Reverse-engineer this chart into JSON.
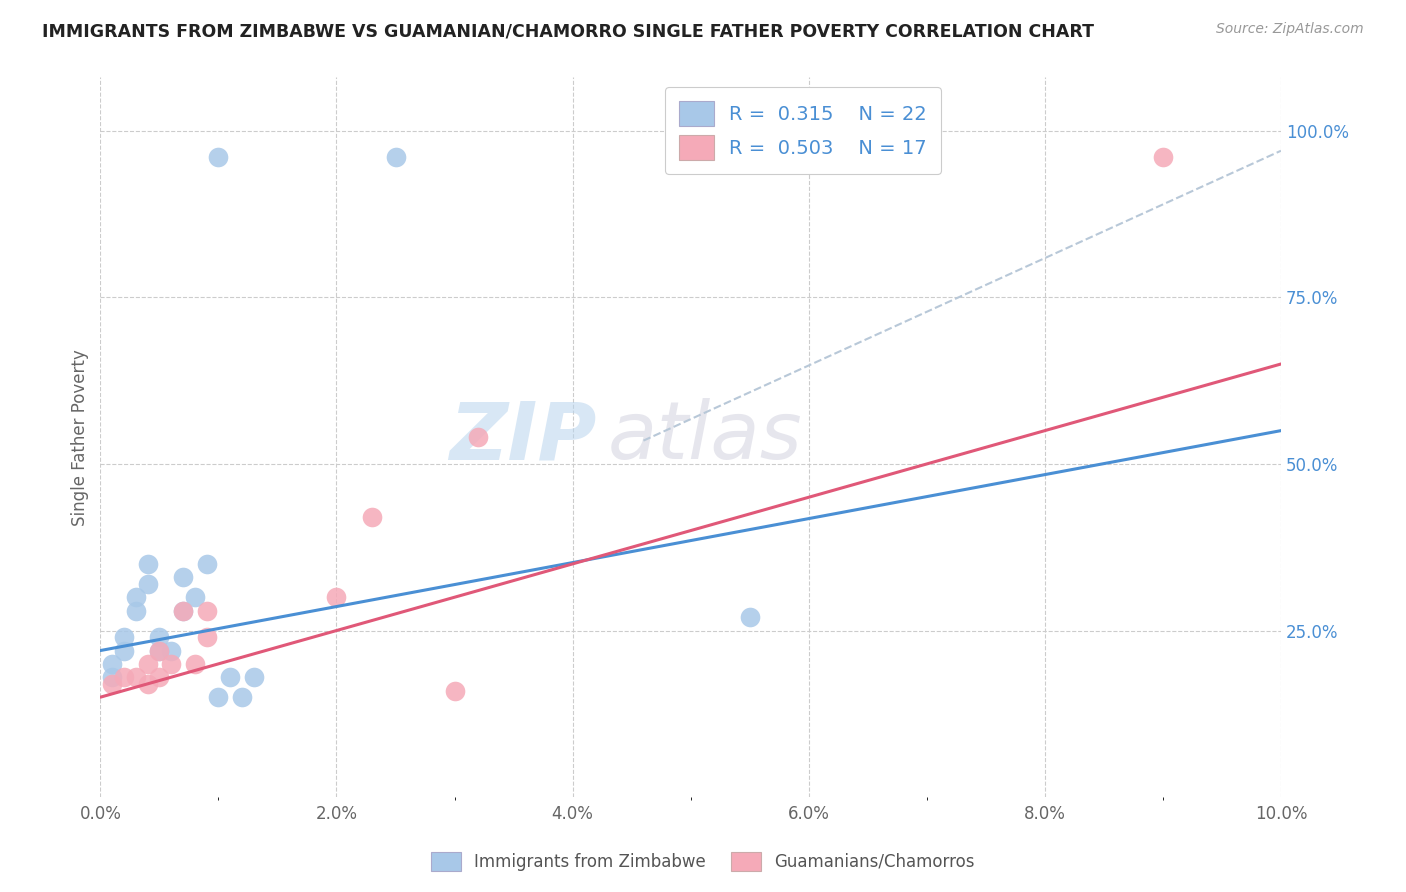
{
  "title": "IMMIGRANTS FROM ZIMBABWE VS GUAMANIAN/CHAMORRO SINGLE FATHER POVERTY CORRELATION CHART",
  "source": "Source: ZipAtlas.com",
  "ylabel": "Single Father Poverty",
  "xlim": [
    0.0,
    0.1
  ],
  "ylim": [
    0.0,
    1.08
  ],
  "xtick_labels": [
    "0.0%",
    "",
    "2.0%",
    "",
    "4.0%",
    "",
    "6.0%",
    "",
    "8.0%",
    "",
    "10.0%"
  ],
  "xtick_vals": [
    0.0,
    0.01,
    0.02,
    0.03,
    0.04,
    0.05,
    0.06,
    0.07,
    0.08,
    0.09,
    0.1
  ],
  "ytick_labels": [
    "100.0%",
    "75.0%",
    "50.0%",
    "25.0%"
  ],
  "ytick_vals": [
    1.0,
    0.75,
    0.5,
    0.25
  ],
  "blue_R": "0.315",
  "blue_N": "22",
  "pink_R": "0.503",
  "pink_N": "17",
  "blue_color": "#a8c8e8",
  "pink_color": "#f5aab8",
  "blue_line_color": "#4a8fd4",
  "pink_line_color": "#e05878",
  "dashed_line_color": "#b8c8d8",
  "watermark_zip": "ZIP",
  "watermark_atlas": "atlas",
  "legend_label_blue": "Immigrants from Zimbabwe",
  "legend_label_pink": "Guamanians/Chamorros",
  "blue_scatter_x": [
    0.001,
    0.001,
    0.002,
    0.002,
    0.003,
    0.003,
    0.004,
    0.004,
    0.005,
    0.005,
    0.006,
    0.007,
    0.007,
    0.008,
    0.009,
    0.01,
    0.011,
    0.012,
    0.013,
    0.055,
    0.01,
    0.025
  ],
  "blue_scatter_y": [
    0.18,
    0.2,
    0.22,
    0.24,
    0.28,
    0.3,
    0.32,
    0.35,
    0.22,
    0.24,
    0.22,
    0.28,
    0.33,
    0.3,
    0.35,
    0.15,
    0.18,
    0.15,
    0.18,
    0.27,
    0.96,
    0.96
  ],
  "pink_scatter_x": [
    0.001,
    0.002,
    0.003,
    0.004,
    0.004,
    0.005,
    0.005,
    0.006,
    0.007,
    0.008,
    0.009,
    0.009,
    0.02,
    0.023,
    0.03,
    0.032,
    0.09
  ],
  "pink_scatter_y": [
    0.17,
    0.18,
    0.18,
    0.17,
    0.2,
    0.18,
    0.22,
    0.2,
    0.28,
    0.2,
    0.24,
    0.28,
    0.3,
    0.42,
    0.16,
    0.54,
    0.96
  ],
  "blue_line_x": [
    0.0,
    0.1
  ],
  "blue_line_y": [
    0.22,
    0.55
  ],
  "pink_line_x": [
    0.0,
    0.1
  ],
  "pink_line_y": [
    0.15,
    0.65
  ],
  "dashed_line_x": [
    0.046,
    0.1
  ],
  "dashed_line_y": [
    0.535,
    0.97
  ]
}
